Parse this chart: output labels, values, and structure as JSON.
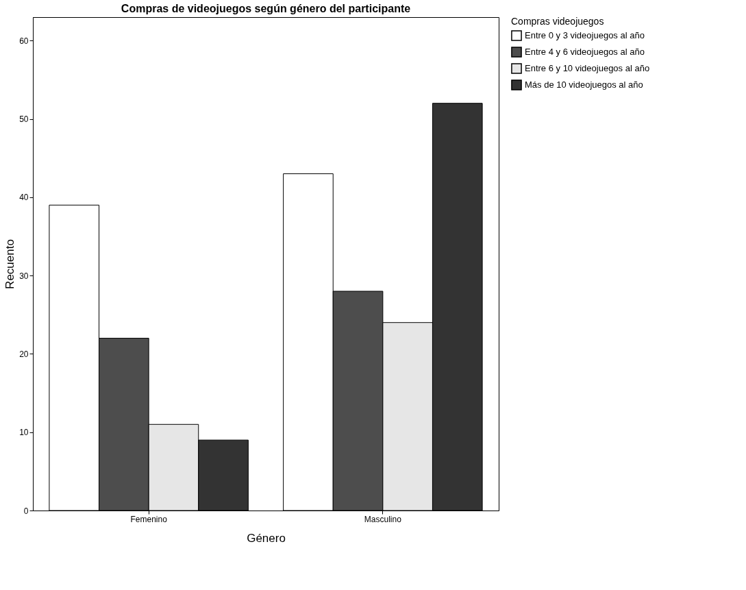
{
  "chart_data": {
    "type": "bar",
    "title": "Compras de videojuegos según género del participante",
    "xlabel": "Género",
    "ylabel": "Recuento",
    "legend_title": "Compras videojuegos",
    "categories": [
      "Femenino",
      "Masculino"
    ],
    "series": [
      {
        "name": "Entre 0 y 3 videojuegos al año",
        "color": "#ffffff",
        "values": [
          39,
          43
        ]
      },
      {
        "name": "Entre 4 y 6 videojuegos al año",
        "color": "#4d4d4d",
        "values": [
          22,
          28
        ]
      },
      {
        "name": "Entre 6 y 10 videojuegos al año",
        "color": "#e6e6e6",
        "values": [
          11,
          24
        ]
      },
      {
        "name": "Más de 10 videojuegos al año",
        "color": "#333333",
        "values": [
          9,
          52
        ]
      }
    ],
    "ylim": [
      0,
      63
    ],
    "yticks": [
      0,
      10,
      20,
      30,
      40,
      50,
      60
    ],
    "grid": false,
    "legend": "top right"
  }
}
